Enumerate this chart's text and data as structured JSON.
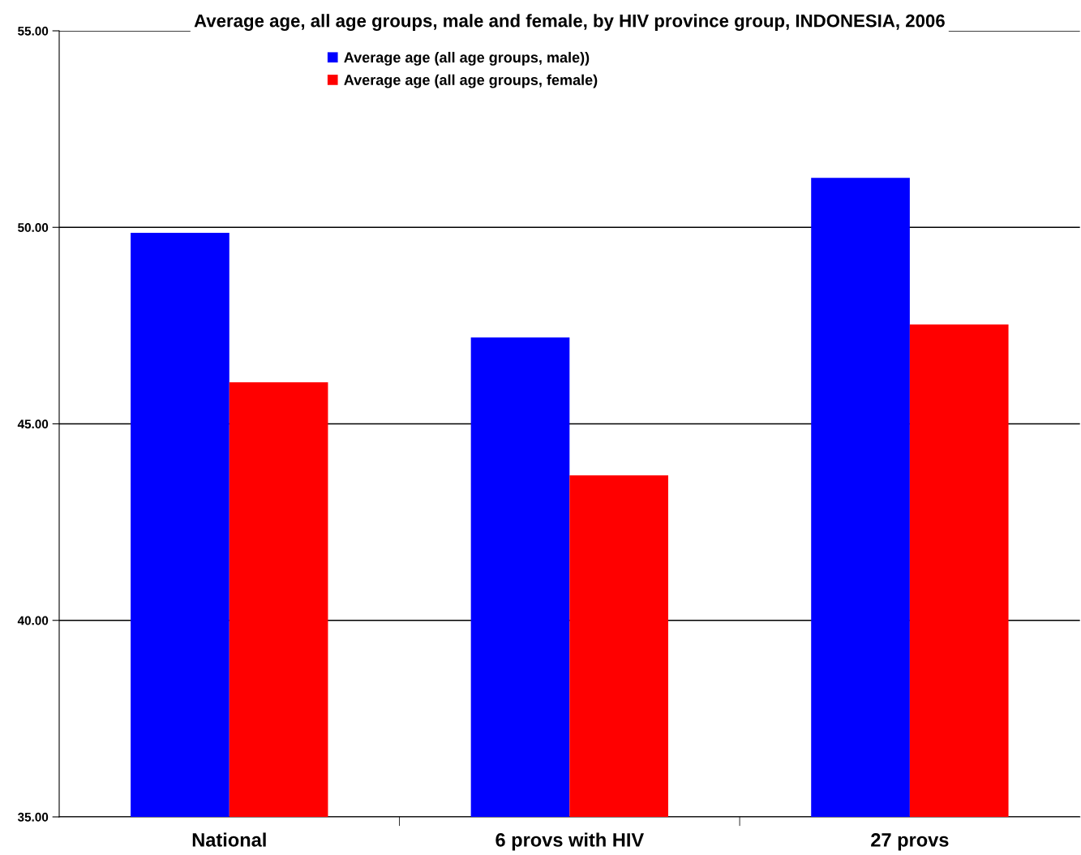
{
  "chart_data": {
    "type": "bar",
    "title": "Average age, all age groups, male and female, by HIV province group, INDONESIA, 2006",
    "categories": [
      "National",
      "6 provs with HIV",
      "27 provs"
    ],
    "series": [
      {
        "name": "Average age (all age groups, male))",
        "color": "#0000ff",
        "values": [
          49.86,
          47.2,
          51.26
        ]
      },
      {
        "name": "Average age (all age groups, female)",
        "color": "#ff0000",
        "values": [
          46.06,
          43.69,
          47.53
        ]
      }
    ],
    "ylim": [
      35,
      55
    ],
    "yticks": [
      {
        "value": 35,
        "label": "35.00"
      },
      {
        "value": 40,
        "label": "40.00"
      },
      {
        "value": 45,
        "label": "45.00"
      },
      {
        "value": 50,
        "label": "50.00"
      },
      {
        "value": 55,
        "label": "55.00"
      }
    ],
    "grid": "y",
    "legend": "top left"
  }
}
